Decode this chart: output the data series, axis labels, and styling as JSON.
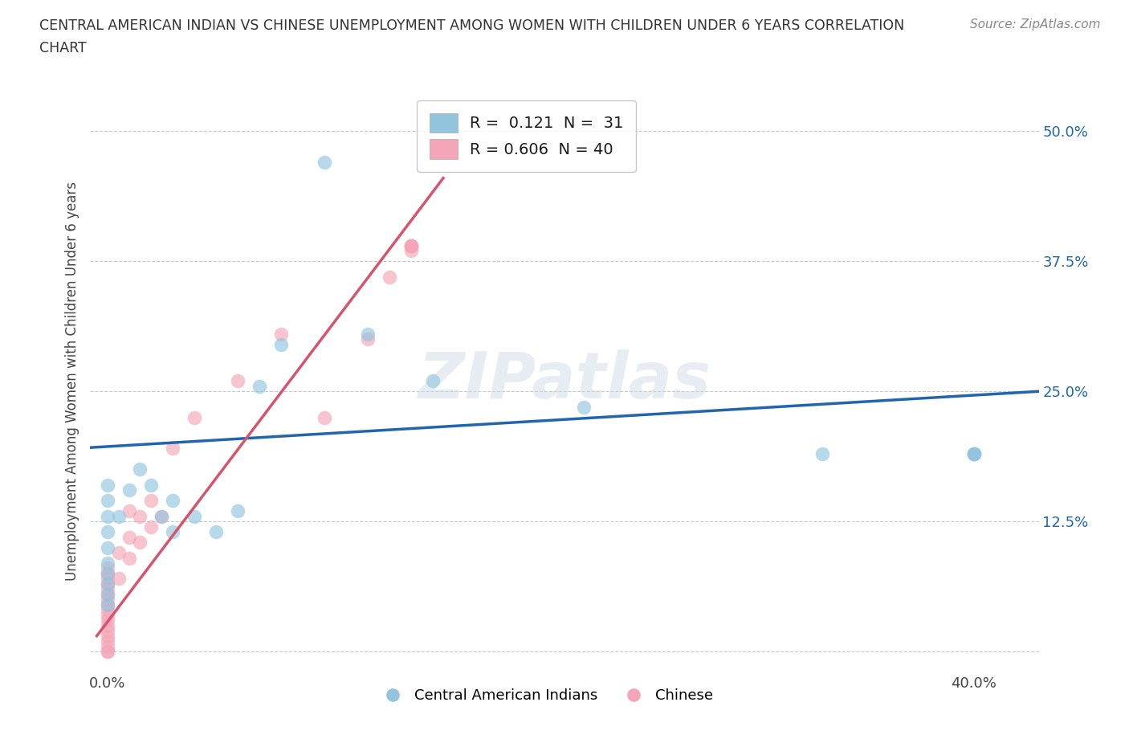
{
  "title_line1": "CENTRAL AMERICAN INDIAN VS CHINESE UNEMPLOYMENT AMONG WOMEN WITH CHILDREN UNDER 6 YEARS CORRELATION",
  "title_line2": "CHART",
  "source": "Source: ZipAtlas.com",
  "ylabel": "Unemployment Among Women with Children Under 6 years",
  "x_ticks": [
    0.0,
    0.1,
    0.2,
    0.3,
    0.4
  ],
  "y_ticks": [
    0.0,
    0.125,
    0.25,
    0.375,
    0.5
  ],
  "xlim": [
    -0.008,
    0.43
  ],
  "ylim": [
    -0.02,
    0.54
  ],
  "blue_color": "#92c5de",
  "pink_color": "#f4a6b8",
  "blue_line_color": "#2166ac",
  "pink_line_color": "#d6556e",
  "grid_color": "#bbbbbb",
  "background_color": "#ffffff",
  "watermark": "ZIPatlas",
  "legend_r1_prefix": "R = ",
  "legend_r1_val": " 0.121",
  "legend_r1_n": "N = ",
  "legend_r1_nval": " 31",
  "legend_r2_prefix": "R = ",
  "legend_r2_val": "0.606",
  "legend_r2_n": "N = ",
  "legend_r2_nval": "40",
  "blue_label": "Central American Indians",
  "pink_label": "Chinese",
  "blue_scatter_x": [
    0.0,
    0.0,
    0.0,
    0.0,
    0.0,
    0.0,
    0.0,
    0.0,
    0.0,
    0.0,
    0.005,
    0.01,
    0.015,
    0.02,
    0.025,
    0.03,
    0.03,
    0.04,
    0.05,
    0.06,
    0.07,
    0.08,
    0.1,
    0.12,
    0.15,
    0.22,
    0.33,
    0.4,
    0.4,
    0.4,
    0.4
  ],
  "blue_scatter_y": [
    0.045,
    0.055,
    0.065,
    0.075,
    0.085,
    0.1,
    0.115,
    0.13,
    0.145,
    0.16,
    0.13,
    0.155,
    0.175,
    0.16,
    0.13,
    0.115,
    0.145,
    0.13,
    0.115,
    0.135,
    0.255,
    0.295,
    0.47,
    0.305,
    0.26,
    0.235,
    0.19,
    0.19,
    0.19,
    0.19,
    0.19
  ],
  "pink_scatter_x": [
    0.0,
    0.0,
    0.0,
    0.0,
    0.0,
    0.0,
    0.0,
    0.0,
    0.0,
    0.0,
    0.0,
    0.0,
    0.0,
    0.0,
    0.0,
    0.0,
    0.0,
    0.0,
    0.005,
    0.005,
    0.01,
    0.01,
    0.01,
    0.015,
    0.015,
    0.02,
    0.02,
    0.025,
    0.03,
    0.04,
    0.06,
    0.08,
    0.1,
    0.12,
    0.13,
    0.14,
    0.14,
    0.14,
    0.14,
    0.14
  ],
  "pink_scatter_y": [
    0.0,
    0.0,
    0.005,
    0.01,
    0.015,
    0.02,
    0.025,
    0.03,
    0.035,
    0.04,
    0.045,
    0.05,
    0.055,
    0.06,
    0.065,
    0.07,
    0.075,
    0.08,
    0.07,
    0.095,
    0.09,
    0.11,
    0.135,
    0.105,
    0.13,
    0.12,
    0.145,
    0.13,
    0.195,
    0.225,
    0.26,
    0.305,
    0.225,
    0.3,
    0.36,
    0.385,
    0.39,
    0.39,
    0.39,
    0.39
  ],
  "blue_line_x": [
    -0.008,
    0.43
  ],
  "blue_line_y": [
    0.196,
    0.25
  ],
  "pink_line_x": [
    -0.005,
    0.155
  ],
  "pink_line_y": [
    0.015,
    0.455
  ]
}
